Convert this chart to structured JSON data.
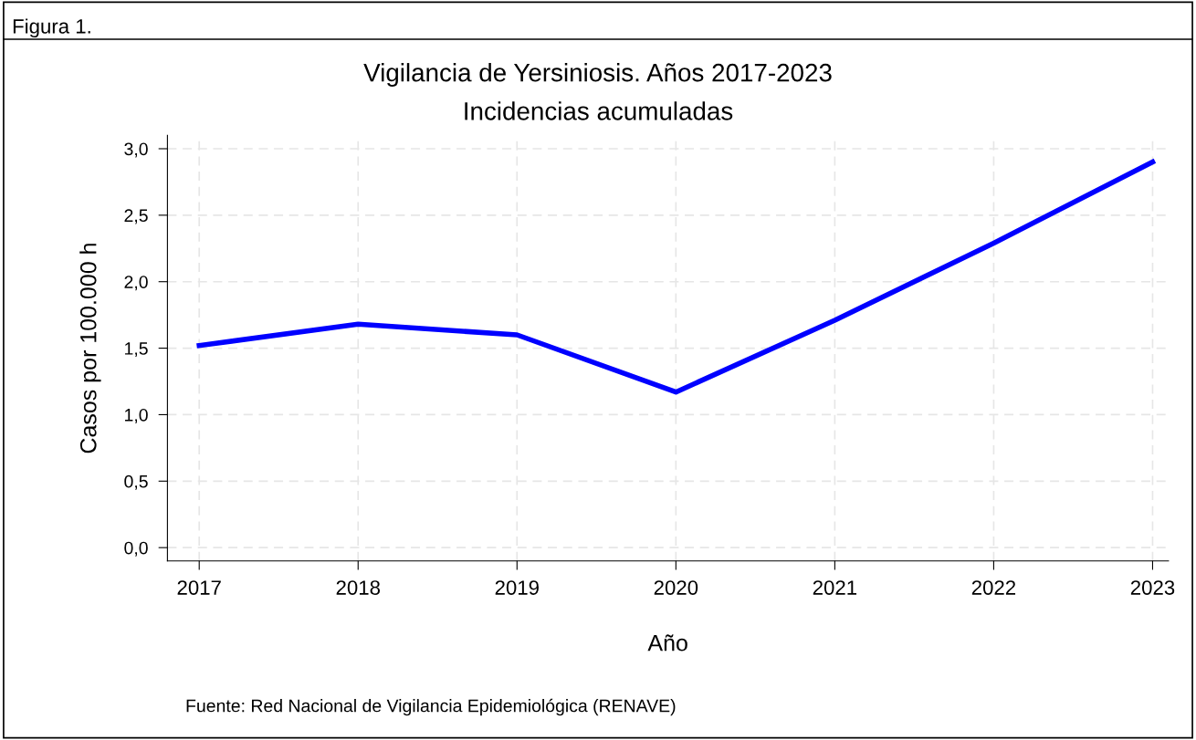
{
  "chart_data": {
    "type": "line",
    "title": "Vigilancia de Yersiniosis. Años 2017-2023",
    "subtitle": "Incidencias acumuladas",
    "xlabel": "Año",
    "ylabel": "Casos por 100.000 h",
    "annotations": [
      "Figura 1.",
      "Fuente: Red Nacional de Vigilancia Epidemiológica (RENAVE)"
    ],
    "x": [
      2017,
      2018,
      2019,
      2020,
      2021,
      2022,
      2023
    ],
    "series": [
      {
        "color": "#0000ff",
        "values": [
          1.52,
          1.68,
          1.6,
          1.17,
          1.71,
          2.29,
          2.9
        ]
      }
    ],
    "xlim": [
      2016.8,
      2023.1
    ],
    "xticks": [
      2017,
      2018,
      2019,
      2020,
      2021,
      2022,
      2023
    ],
    "ylim": [
      -0.1,
      3.1
    ],
    "yticks": [
      {
        "value": 0,
        "label": "0,0"
      },
      {
        "value": 0.5,
        "label": "0,5"
      },
      {
        "value": 1,
        "label": "1,0"
      },
      {
        "value": 1.5,
        "label": "1,5"
      },
      {
        "value": 2,
        "label": "2,0"
      },
      {
        "value": 2.5,
        "label": "2,5"
      },
      {
        "value": 3,
        "label": "3,0"
      }
    ],
    "grid": true,
    "line_style": "solid",
    "marker": "none"
  }
}
